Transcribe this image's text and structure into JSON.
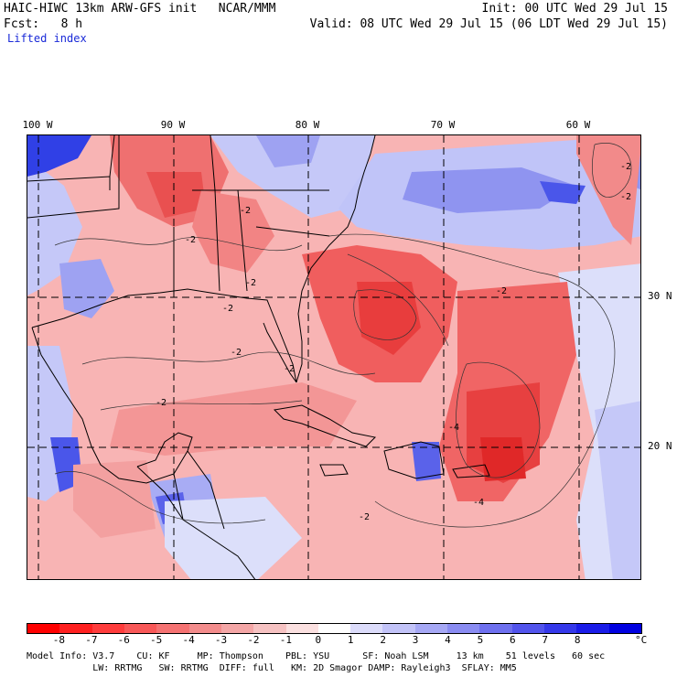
{
  "header": {
    "title_line": "HAIC-HIWC 13km ARW-GFS init   NCAR/MMM",
    "init": "Init: 00 UTC Wed 29 Jul 15",
    "fcst": "Fcst:   8 h",
    "valid": "Valid: 08 UTC Wed 29 Jul 15 (06 LDT Wed 29 Jul 15)",
    "field": "Lifted index"
  },
  "map": {
    "lon_labels": [
      "100 W",
      "90 W",
      "80 W",
      "70 W",
      "60 W"
    ],
    "lat_labels": [
      "30 N",
      "20 N"
    ],
    "contour_labels": [
      "-2",
      "-4"
    ],
    "colors": {
      "ocean_negative": "#f7a8a8",
      "strong_negative": "#ee3a3a",
      "positive": "#b4b8f7",
      "strong_positive": "#2a35e8"
    }
  },
  "colorbar": {
    "ticks": [
      "-8",
      "-7",
      "-6",
      "-5",
      "-4",
      "-3",
      "-2",
      "-1",
      "0",
      "1",
      "2",
      "3",
      "4",
      "5",
      "6",
      "7",
      "8"
    ],
    "unit": "°C",
    "colors": [
      "#ff0000",
      "#ff2020",
      "#ff3c3c",
      "#f85858",
      "#f57272",
      "#f38c8c",
      "#f4a6a6",
      "#f6c2c2",
      "#fbe0e0",
      "#ffffff",
      "#dcdcfb",
      "#c2c3f8",
      "#a6a8f5",
      "#8a8cf2",
      "#6e70ef",
      "#5254ec",
      "#3538ea",
      "#1a1ce8",
      "#0000e0"
    ]
  },
  "footer": {
    "line1": "Model Info: V3.7    CU: KF     MP: Thompson    PBL: YSU      SF: Noah LSM     13 km    51 levels   60 sec",
    "line2": "            LW: RRTMG   SW: RRTMG  DIFF: full   KM: 2D Smagor DAMP: Rayleigh3  SFLAY: MM5"
  }
}
